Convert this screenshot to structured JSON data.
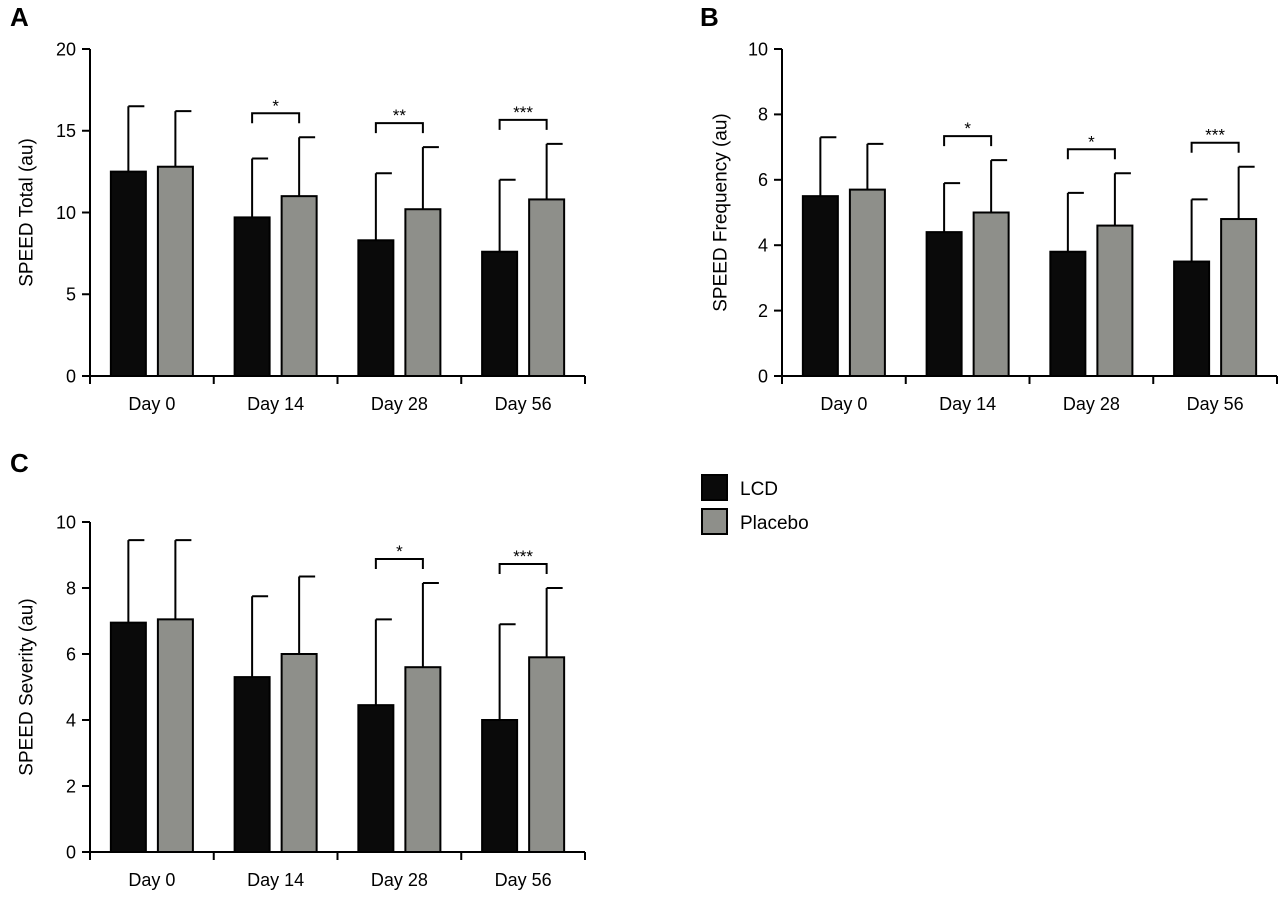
{
  "colors": {
    "lcd": "#0a0a0a",
    "placebo": "#8e8f8a",
    "axis": "#000000"
  },
  "legend": {
    "items": [
      {
        "label": "LCD",
        "color_key": "lcd"
      },
      {
        "label": "Placebo",
        "color_key": "placebo"
      }
    ]
  },
  "chart_data": [
    {
      "panel": "A",
      "type": "bar",
      "ylabel": "SPEED Total (au)",
      "ylim": [
        0,
        20
      ],
      "yticks": [
        0,
        5,
        10,
        15,
        20
      ],
      "ytick_labels": [
        "0",
        "5",
        "10",
        "15",
        "20"
      ],
      "categories": [
        "Day 0",
        "Day 14",
        "Day 28",
        "Day 56"
      ],
      "series": [
        {
          "name": "LCD",
          "values": [
            12.5,
            9.7,
            8.3,
            7.6
          ],
          "error": [
            4.0,
            3.6,
            4.1,
            4.4
          ]
        },
        {
          "name": "Placebo",
          "values": [
            12.8,
            11.0,
            10.2,
            10.8
          ],
          "error": [
            3.4,
            3.6,
            3.8,
            3.4
          ]
        }
      ],
      "significance": [
        {
          "category": "Day 14",
          "label": "*"
        },
        {
          "category": "Day 28",
          "label": "**"
        },
        {
          "category": "Day 56",
          "label": "***"
        }
      ]
    },
    {
      "panel": "B",
      "type": "bar",
      "ylabel": "SPEED Frequency (au)",
      "ylim": [
        0,
        10
      ],
      "yticks": [
        0,
        2,
        4,
        6,
        8,
        10
      ],
      "ytick_labels": [
        "0",
        "2",
        "4",
        "6",
        "8",
        "10"
      ],
      "categories": [
        "Day 0",
        "Day 14",
        "Day 28",
        "Day 56"
      ],
      "series": [
        {
          "name": "LCD",
          "values": [
            5.5,
            4.4,
            3.8,
            3.5
          ],
          "error": [
            1.8,
            1.5,
            1.8,
            1.9
          ]
        },
        {
          "name": "Placebo",
          "values": [
            5.7,
            5.0,
            4.6,
            4.8
          ],
          "error": [
            1.4,
            1.6,
            1.6,
            1.6
          ]
        }
      ],
      "significance": [
        {
          "category": "Day 14",
          "label": "*"
        },
        {
          "category": "Day 28",
          "label": "*"
        },
        {
          "category": "Day 56",
          "label": "***"
        }
      ]
    },
    {
      "panel": "C",
      "type": "bar",
      "ylabel": "SPEED Severity (au)",
      "ylim": [
        0,
        10
      ],
      "yticks": [
        0,
        2,
        4,
        6,
        8,
        10
      ],
      "ytick_labels": [
        "0",
        "2",
        "4",
        "6",
        "8",
        "10"
      ],
      "categories": [
        "Day 0",
        "Day 14",
        "Day 28",
        "Day 56"
      ],
      "series": [
        {
          "name": "LCD",
          "values": [
            6.95,
            5.3,
            4.45,
            4.0
          ],
          "error": [
            2.5,
            2.45,
            2.6,
            2.9
          ]
        },
        {
          "name": "Placebo",
          "values": [
            7.05,
            6.0,
            5.6,
            5.9
          ],
          "error": [
            2.4,
            2.35,
            2.55,
            2.1
          ]
        }
      ],
      "significance": [
        {
          "category": "Day 28",
          "label": "*"
        },
        {
          "category": "Day 56",
          "label": "***"
        }
      ]
    }
  ]
}
